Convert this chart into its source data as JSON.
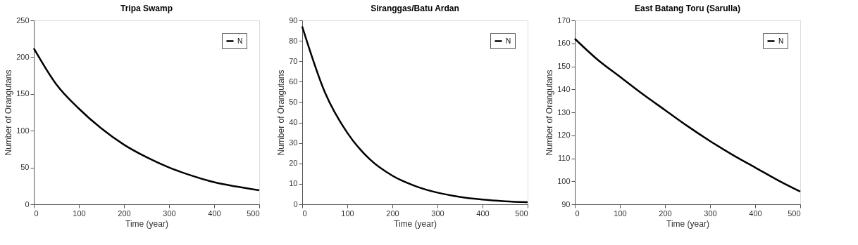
{
  "chart_data": [
    {
      "type": "line",
      "title": "Tripa Swamp",
      "xlabel": "Time (year)",
      "ylabel": "Number of Orangutans",
      "x": [
        0,
        50,
        100,
        150,
        200,
        250,
        300,
        350,
        400,
        450,
        500
      ],
      "series": [
        {
          "name": "N",
          "color": "#000000",
          "values": [
            212,
            163,
            130,
            103,
            81,
            64,
            50,
            39,
            30,
            24,
            19
          ]
        }
      ],
      "xlim": [
        0,
        500
      ],
      "xticks": [
        0,
        100,
        200,
        300,
        400,
        500
      ],
      "ylim": [
        0,
        250
      ],
      "yticks": [
        0,
        50,
        100,
        150,
        200,
        250
      ],
      "legend": "top right",
      "grid": false
    },
    {
      "type": "line",
      "title": "Siranggas/Batu Ardan",
      "xlabel": "Time (year)",
      "ylabel": "Number of Orangutans",
      "x": [
        0,
        50,
        100,
        150,
        200,
        250,
        300,
        350,
        400,
        450,
        500
      ],
      "series": [
        {
          "name": "N",
          "color": "#000000",
          "values": [
            87,
            55,
            35,
            22,
            14,
            9,
            5.7,
            3.6,
            2.3,
            1.5,
            1
          ]
        }
      ],
      "xlim": [
        0,
        500
      ],
      "xticks": [
        0,
        100,
        200,
        300,
        400,
        500
      ],
      "ylim": [
        0,
        90
      ],
      "yticks": [
        0,
        10,
        20,
        30,
        40,
        50,
        60,
        70,
        80,
        90
      ],
      "legend": "top right",
      "grid": false
    },
    {
      "type": "line",
      "title": "East Batang Toru (Sarulla)",
      "xlabel": "Time (year)",
      "ylabel": "Number of Orangutans",
      "x": [
        0,
        50,
        100,
        150,
        200,
        250,
        300,
        350,
        400,
        450,
        500
      ],
      "series": [
        {
          "name": "N",
          "color": "#000000",
          "values": [
            162,
            153,
            145.5,
            138,
            131,
            124,
            117.5,
            111.5,
            106,
            100.5,
            95.5
          ]
        }
      ],
      "xlim": [
        0,
        500
      ],
      "xticks": [
        0,
        100,
        200,
        300,
        400,
        500
      ],
      "ylim": [
        90,
        170
      ],
      "yticks": [
        90,
        100,
        110,
        120,
        130,
        140,
        150,
        160,
        170
      ],
      "legend": "top right",
      "grid": false
    }
  ]
}
